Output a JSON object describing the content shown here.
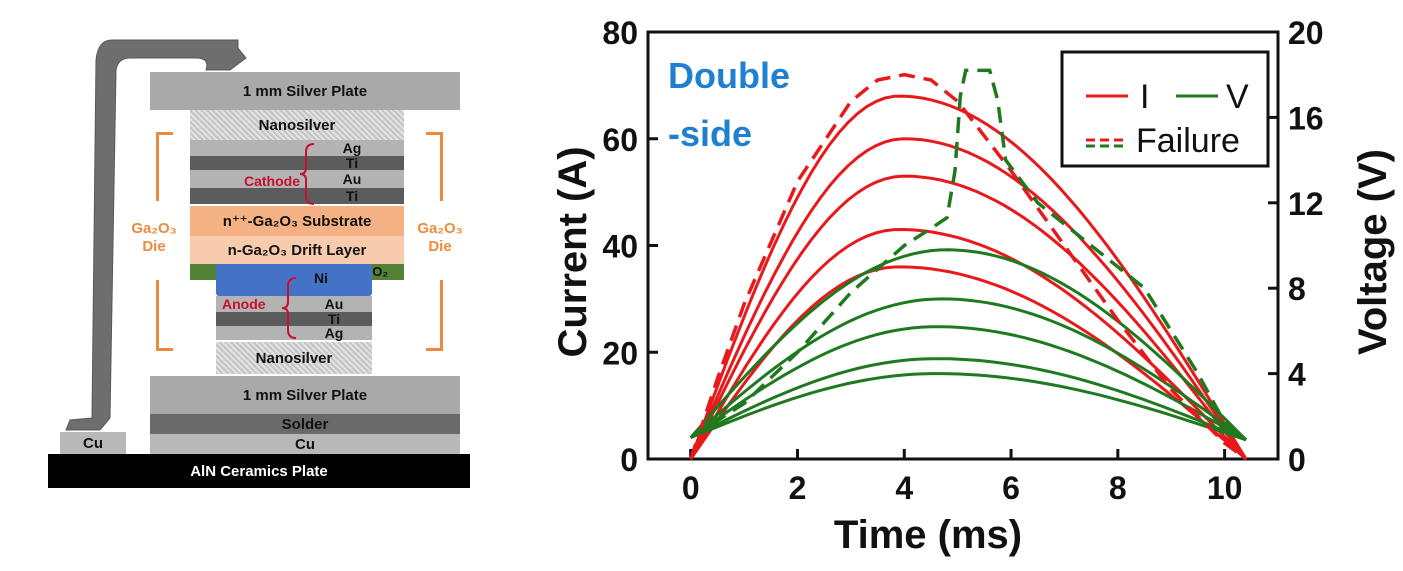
{
  "diagram": {
    "top_plate": "1 mm Silver Plate",
    "nanosilver_top": "Nanosilver",
    "cathode_layers": [
      "Ag",
      "Ti",
      "Au",
      "Ti"
    ],
    "cathode_label": "Cathode",
    "substrate": "n⁺⁺-Ga₂O₃ Substrate",
    "drift_layer": "n-Ga₂O₃ Drift Layer",
    "sio2": "SiO₂",
    "anode_layers": [
      "Ni",
      "Au",
      "Ti",
      "Ag"
    ],
    "anode_label": "Anode",
    "nanosilver_bottom": "Nanosilver",
    "bottom_plate": "1 mm Silver Plate",
    "solder": "Solder",
    "cu_main": "Cu",
    "cu_small": "Cu",
    "ceramics": "AlN Ceramics Plate",
    "die_label_left": [
      "Ga₂O₃",
      "Die"
    ],
    "die_label_right": [
      "Ga₂O₃",
      "Die"
    ]
  },
  "chart_data": {
    "type": "line",
    "annotation": "Double\n-side",
    "annotation_lines": [
      "Double",
      "-side"
    ],
    "xlabel": "Time (ms)",
    "ylabel": "Current (A)",
    "y2label": "Voltage (V)",
    "xlim": [
      -0.8,
      11.0
    ],
    "ylim": [
      0,
      80
    ],
    "y2lim": [
      0,
      20
    ],
    "xticks": [
      "0",
      "2",
      "4",
      "6",
      "8",
      "10"
    ],
    "yticks": [
      "0",
      "20",
      "40",
      "60",
      "80"
    ],
    "y2ticks": [
      "0",
      "4",
      "8",
      "12",
      "16",
      "20"
    ],
    "legend": {
      "current": "I",
      "voltage": "V",
      "failure": "Failure"
    },
    "colors": {
      "current": "#e8191c",
      "voltage": "#1f7a1f",
      "annotation": "#1f7fd1"
    },
    "current_series": [
      {
        "name": "I1",
        "peak": 36,
        "t_peak": 3.9,
        "end": 10.4
      },
      {
        "name": "I2",
        "peak": 43,
        "t_peak": 3.9,
        "end": 10.4
      },
      {
        "name": "I3",
        "peak": 53,
        "t_peak": 4.0,
        "end": 10.4
      },
      {
        "name": "I4",
        "peak": 60,
        "t_peak": 4.0,
        "end": 10.4
      },
      {
        "name": "I5",
        "peak": 68,
        "t_peak": 3.9,
        "end": 10.4
      }
    ],
    "voltage_series": [
      {
        "name": "V1",
        "start": 1.0,
        "peak": 4.0,
        "t_peak": 4.6,
        "end": 0.9
      },
      {
        "name": "V2",
        "start": 1.0,
        "peak": 4.7,
        "t_peak": 4.6,
        "end": 0.9
      },
      {
        "name": "V3",
        "start": 1.0,
        "peak": 6.2,
        "t_peak": 4.6,
        "end": 0.9
      },
      {
        "name": "V4",
        "start": 1.0,
        "peak": 7.5,
        "t_peak": 4.7,
        "end": 0.9
      },
      {
        "name": "V5",
        "start": 1.0,
        "peak": 9.8,
        "t_peak": 4.8,
        "end": 0.9
      }
    ],
    "failure_current": [
      [
        0,
        0
      ],
      [
        0.5,
        15
      ],
      [
        1.0,
        29
      ],
      [
        2.0,
        52
      ],
      [
        3.0,
        67
      ],
      [
        3.5,
        71
      ],
      [
        4.0,
        72
      ],
      [
        4.5,
        71
      ],
      [
        5.0,
        67
      ],
      [
        6.0,
        54
      ],
      [
        7.0,
        40
      ],
      [
        8.0,
        26
      ],
      [
        9.0,
        13
      ],
      [
        10.0,
        3
      ],
      [
        10.4,
        0
      ]
    ],
    "failure_voltage": [
      [
        0,
        1.0
      ],
      [
        0.5,
        1.8
      ],
      [
        1.0,
        2.6
      ],
      [
        2.0,
        5.0
      ],
      [
        3.0,
        7.8
      ],
      [
        4.0,
        10.0
      ],
      [
        4.5,
        10.8
      ],
      [
        4.8,
        11.3
      ],
      [
        4.95,
        13.5
      ],
      [
        5.05,
        17.0
      ],
      [
        5.15,
        18.2
      ],
      [
        5.6,
        18.2
      ],
      [
        5.75,
        16.8
      ],
      [
        5.9,
        14.0
      ],
      [
        6.5,
        12.0
      ],
      [
        7.5,
        10.0
      ],
      [
        8.5,
        8.0
      ],
      [
        9.5,
        4.0
      ],
      [
        10.0,
        1.7
      ],
      [
        10.4,
        0.9
      ]
    ]
  }
}
